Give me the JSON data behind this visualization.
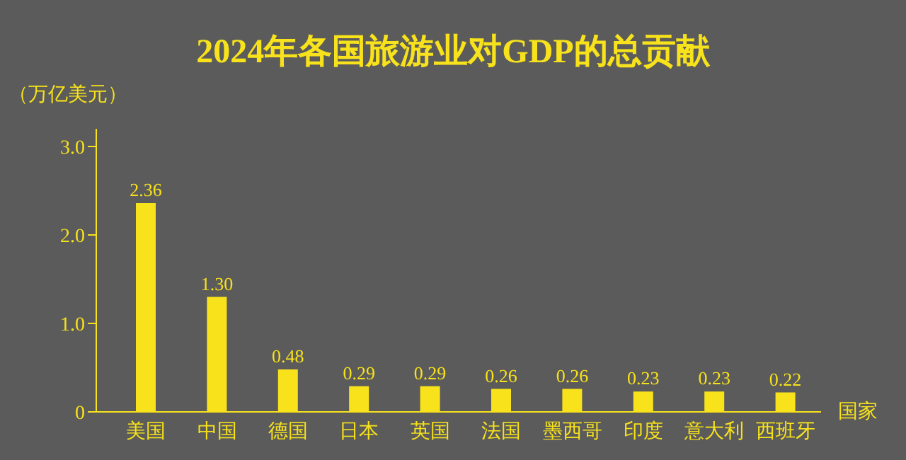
{
  "chart_data": {
    "type": "bar",
    "title": "2024年各国旅游业对GDP的总贡献",
    "ylabel": "（万亿美元）",
    "xlabel": "国家",
    "categories": [
      "美国",
      "中国",
      "德国",
      "日本",
      "英国",
      "法国",
      "墨西哥",
      "印度",
      "意大利",
      "西班牙"
    ],
    "values": [
      2.36,
      1.3,
      0.48,
      0.29,
      0.29,
      0.26,
      0.26,
      0.23,
      0.23,
      0.22
    ],
    "value_labels": [
      "2.36",
      "1.30",
      "0.48",
      "0.29",
      "0.29",
      "0.26",
      "0.26",
      "0.23",
      "0.23",
      "0.22"
    ],
    "color": "#f7e21b",
    "ylim": [
      0,
      3.2
    ],
    "yticks": [
      0,
      {
        "value": 1,
        "label": "1.0"
      },
      {
        "value": 2,
        "label": "2.0"
      },
      {
        "value": 3,
        "label": "3.0"
      }
    ],
    "grid": false
  }
}
